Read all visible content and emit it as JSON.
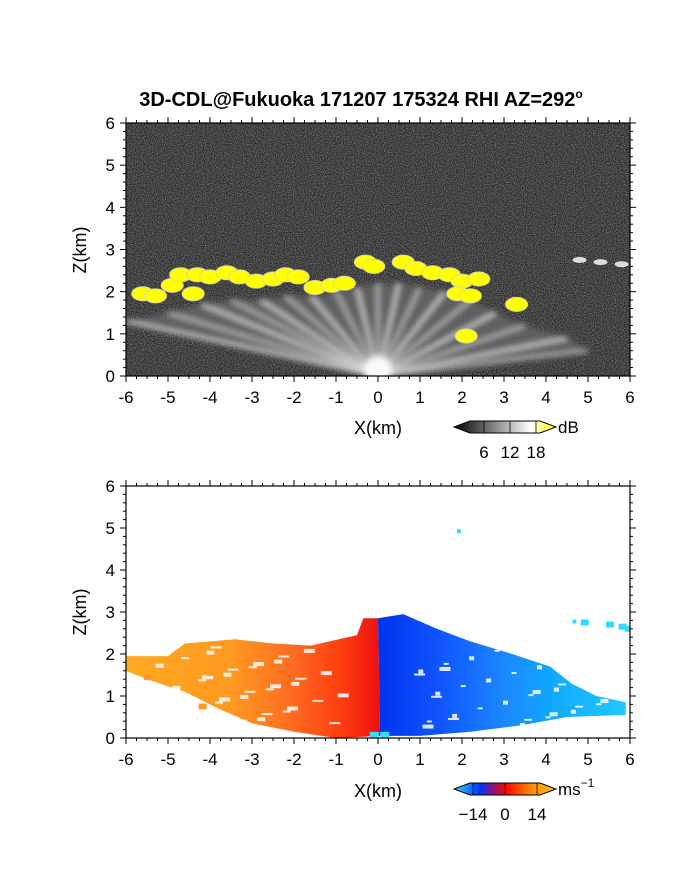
{
  "figure": {
    "title": "3D-CDL@Fukuoka 171207 175324 RHI AZ=292",
    "title_degree": "o"
  },
  "chart_data": [
    {
      "type": "heatmap",
      "name": "reflectivity-panel",
      "xlabel": "X(km)",
      "ylabel": "Z(km)",
      "xlim": [
        -6,
        6
      ],
      "ylim": [
        0,
        6
      ],
      "xticks": [
        "-6",
        "-5",
        "-4",
        "-3",
        "-2",
        "-1",
        "0",
        "1",
        "2",
        "3",
        "4",
        "5",
        "6"
      ],
      "yticks": [
        "0",
        "1",
        "2",
        "3",
        "4",
        "5",
        "6"
      ],
      "background": "#2a2a2a",
      "colorbar": {
        "unit": "dB",
        "ticks": [
          "6",
          "12",
          "18"
        ],
        "range": [
          0,
          21
        ],
        "colors": [
          "#000000",
          "#555555",
          "#aaaaaa",
          "#ffffff",
          "#ffff00"
        ]
      },
      "fan_origin": [
        0,
        0
      ],
      "fan_rays": [
        {
          "x": -6.0,
          "z": 1.3
        },
        {
          "x": -5.0,
          "z": 1.5
        },
        {
          "x": -4.2,
          "z": 1.7
        },
        {
          "x": -3.5,
          "z": 1.8
        },
        {
          "x": -2.8,
          "z": 1.8
        },
        {
          "x": -2.2,
          "z": 1.9
        },
        {
          "x": -1.6,
          "z": 1.9
        },
        {
          "x": -1.0,
          "z": 2.0
        },
        {
          "x": -0.5,
          "z": 2.1
        },
        {
          "x": 0.0,
          "z": 2.2
        },
        {
          "x": 0.5,
          "z": 2.2
        },
        {
          "x": 1.0,
          "z": 2.1
        },
        {
          "x": 1.6,
          "z": 2.0
        },
        {
          "x": 2.2,
          "z": 1.8
        },
        {
          "x": 2.8,
          "z": 1.5
        },
        {
          "x": 3.5,
          "z": 1.2
        },
        {
          "x": 4.5,
          "z": 0.9
        },
        {
          "x": 5.0,
          "z": 0.6
        }
      ],
      "high_echo": [
        {
          "x": -5.6,
          "z": 1.95
        },
        {
          "x": -5.3,
          "z": 1.9
        },
        {
          "x": -4.9,
          "z": 2.15
        },
        {
          "x": -4.7,
          "z": 2.4
        },
        {
          "x": -4.3,
          "z": 2.4
        },
        {
          "x": -4.0,
          "z": 2.35
        },
        {
          "x": -3.6,
          "z": 2.45
        },
        {
          "x": -3.3,
          "z": 2.35
        },
        {
          "x": -2.9,
          "z": 2.25
        },
        {
          "x": -2.5,
          "z": 2.3
        },
        {
          "x": -2.2,
          "z": 2.4
        },
        {
          "x": -1.9,
          "z": 2.35
        },
        {
          "x": -1.5,
          "z": 2.1
        },
        {
          "x": -1.1,
          "z": 2.15
        },
        {
          "x": -0.8,
          "z": 2.2
        },
        {
          "x": -0.3,
          "z": 2.7
        },
        {
          "x": -0.1,
          "z": 2.6
        },
        {
          "x": 0.6,
          "z": 2.7
        },
        {
          "x": 0.9,
          "z": 2.55
        },
        {
          "x": 1.3,
          "z": 2.45
        },
        {
          "x": 1.7,
          "z": 2.4
        },
        {
          "x": 2.0,
          "z": 2.25
        },
        {
          "x": 2.4,
          "z": 2.3
        },
        {
          "x": 1.9,
          "z": 1.95
        },
        {
          "x": 2.2,
          "z": 1.9
        },
        {
          "x": 3.3,
          "z": 1.7
        },
        {
          "x": 2.1,
          "z": 0.95
        },
        {
          "x": -4.4,
          "z": 1.95
        }
      ],
      "sparse_echo": [
        {
          "x": 4.8,
          "z": 2.75
        },
        {
          "x": 5.3,
          "z": 2.7
        },
        {
          "x": 5.8,
          "z": 2.65
        }
      ]
    },
    {
      "type": "heatmap",
      "name": "velocity-panel",
      "xlabel": "X(km)",
      "ylabel": "Z(km)",
      "xlim": [
        -6,
        6
      ],
      "ylim": [
        0,
        6
      ],
      "xticks": [
        "-6",
        "-5",
        "-4",
        "-3",
        "-2",
        "-1",
        "0",
        "1",
        "2",
        "3",
        "4",
        "5",
        "6"
      ],
      "yticks": [
        "0",
        "1",
        "2",
        "3",
        "4",
        "5",
        "6"
      ],
      "background": "#ffffff",
      "colorbar": {
        "unit": "ms",
        "unit_exponent": "−1",
        "ticks": [
          "−14",
          "0",
          "14"
        ],
        "range": [
          -21,
          21
        ],
        "colors": [
          "#33e0ff",
          "#0033ff",
          "#ff0000",
          "#ff8800",
          "#ffcc00"
        ]
      },
      "region_left": {
        "outline": [
          {
            "x": -6.0,
            "z": 1.6
          },
          {
            "x": -6.0,
            "z": 1.95
          },
          {
            "x": -5.0,
            "z": 1.95
          },
          {
            "x": -4.6,
            "z": 2.25
          },
          {
            "x": -3.4,
            "z": 2.35
          },
          {
            "x": -2.5,
            "z": 2.25
          },
          {
            "x": -1.6,
            "z": 2.2
          },
          {
            "x": -0.5,
            "z": 2.45
          },
          {
            "x": -0.35,
            "z": 2.85
          },
          {
            "x": 0.0,
            "z": 2.85
          },
          {
            "x": 0.05,
            "z": 0.05
          },
          {
            "x": -1.0,
            "z": 0.0
          },
          {
            "x": -2.0,
            "z": 0.15
          },
          {
            "x": -3.0,
            "z": 0.35
          },
          {
            "x": -3.8,
            "z": 0.7
          },
          {
            "x": -4.6,
            "z": 1.1
          },
          {
            "x": -5.5,
            "z": 1.4
          }
        ],
        "colors_by_x": [
          {
            "x": -6.0,
            "color": "#ffaa22"
          },
          {
            "x": -3.5,
            "color": "#ff9920"
          },
          {
            "x": -2.0,
            "color": "#ff6a20"
          },
          {
            "x": -0.8,
            "color": "#ff3a10"
          },
          {
            "x": 0.0,
            "color": "#ee1111"
          }
        ]
      },
      "region_right": {
        "outline": [
          {
            "x": 0.0,
            "z": 2.85
          },
          {
            "x": 0.6,
            "z": 2.95
          },
          {
            "x": 1.4,
            "z": 2.6
          },
          {
            "x": 2.2,
            "z": 2.3
          },
          {
            "x": 3.2,
            "z": 2.0
          },
          {
            "x": 4.1,
            "z": 1.7
          },
          {
            "x": 4.6,
            "z": 1.3
          },
          {
            "x": 5.2,
            "z": 1.0
          },
          {
            "x": 5.9,
            "z": 0.85
          },
          {
            "x": 5.9,
            "z": 0.55
          },
          {
            "x": 4.5,
            "z": 0.5
          },
          {
            "x": 3.4,
            "z": 0.3
          },
          {
            "x": 2.2,
            "z": 0.15
          },
          {
            "x": 1.0,
            "z": 0.05
          },
          {
            "x": 0.05,
            "z": 0.05
          }
        ],
        "colors_by_x": [
          {
            "x": 0.0,
            "color": "#0033ee"
          },
          {
            "x": 1.5,
            "color": "#1155ff"
          },
          {
            "x": 3.0,
            "color": "#1a88ff"
          },
          {
            "x": 4.2,
            "color": "#11aaff"
          },
          {
            "x": 6.0,
            "color": "#22c8ff"
          }
        ]
      },
      "sparse_echo": [
        {
          "x": 1.95,
          "z": 4.9
        },
        {
          "x": 4.7,
          "z": 2.75
        },
        {
          "x": 4.9,
          "z": 2.75
        },
        {
          "x": 5.5,
          "z": 2.7
        },
        {
          "x": 5.8,
          "z": 2.65
        },
        {
          "x": 5.95,
          "z": 2.6
        },
        {
          "x": -4.2,
          "z": 0.75
        },
        {
          "x": -5.5,
          "z": 1.45
        },
        {
          "x": -4.0,
          "z": 1.55
        }
      ],
      "surface_echo": [
        {
          "x": -0.1,
          "z": 0.05
        },
        {
          "x": 0.15,
          "z": 0.05
        }
      ]
    }
  ]
}
